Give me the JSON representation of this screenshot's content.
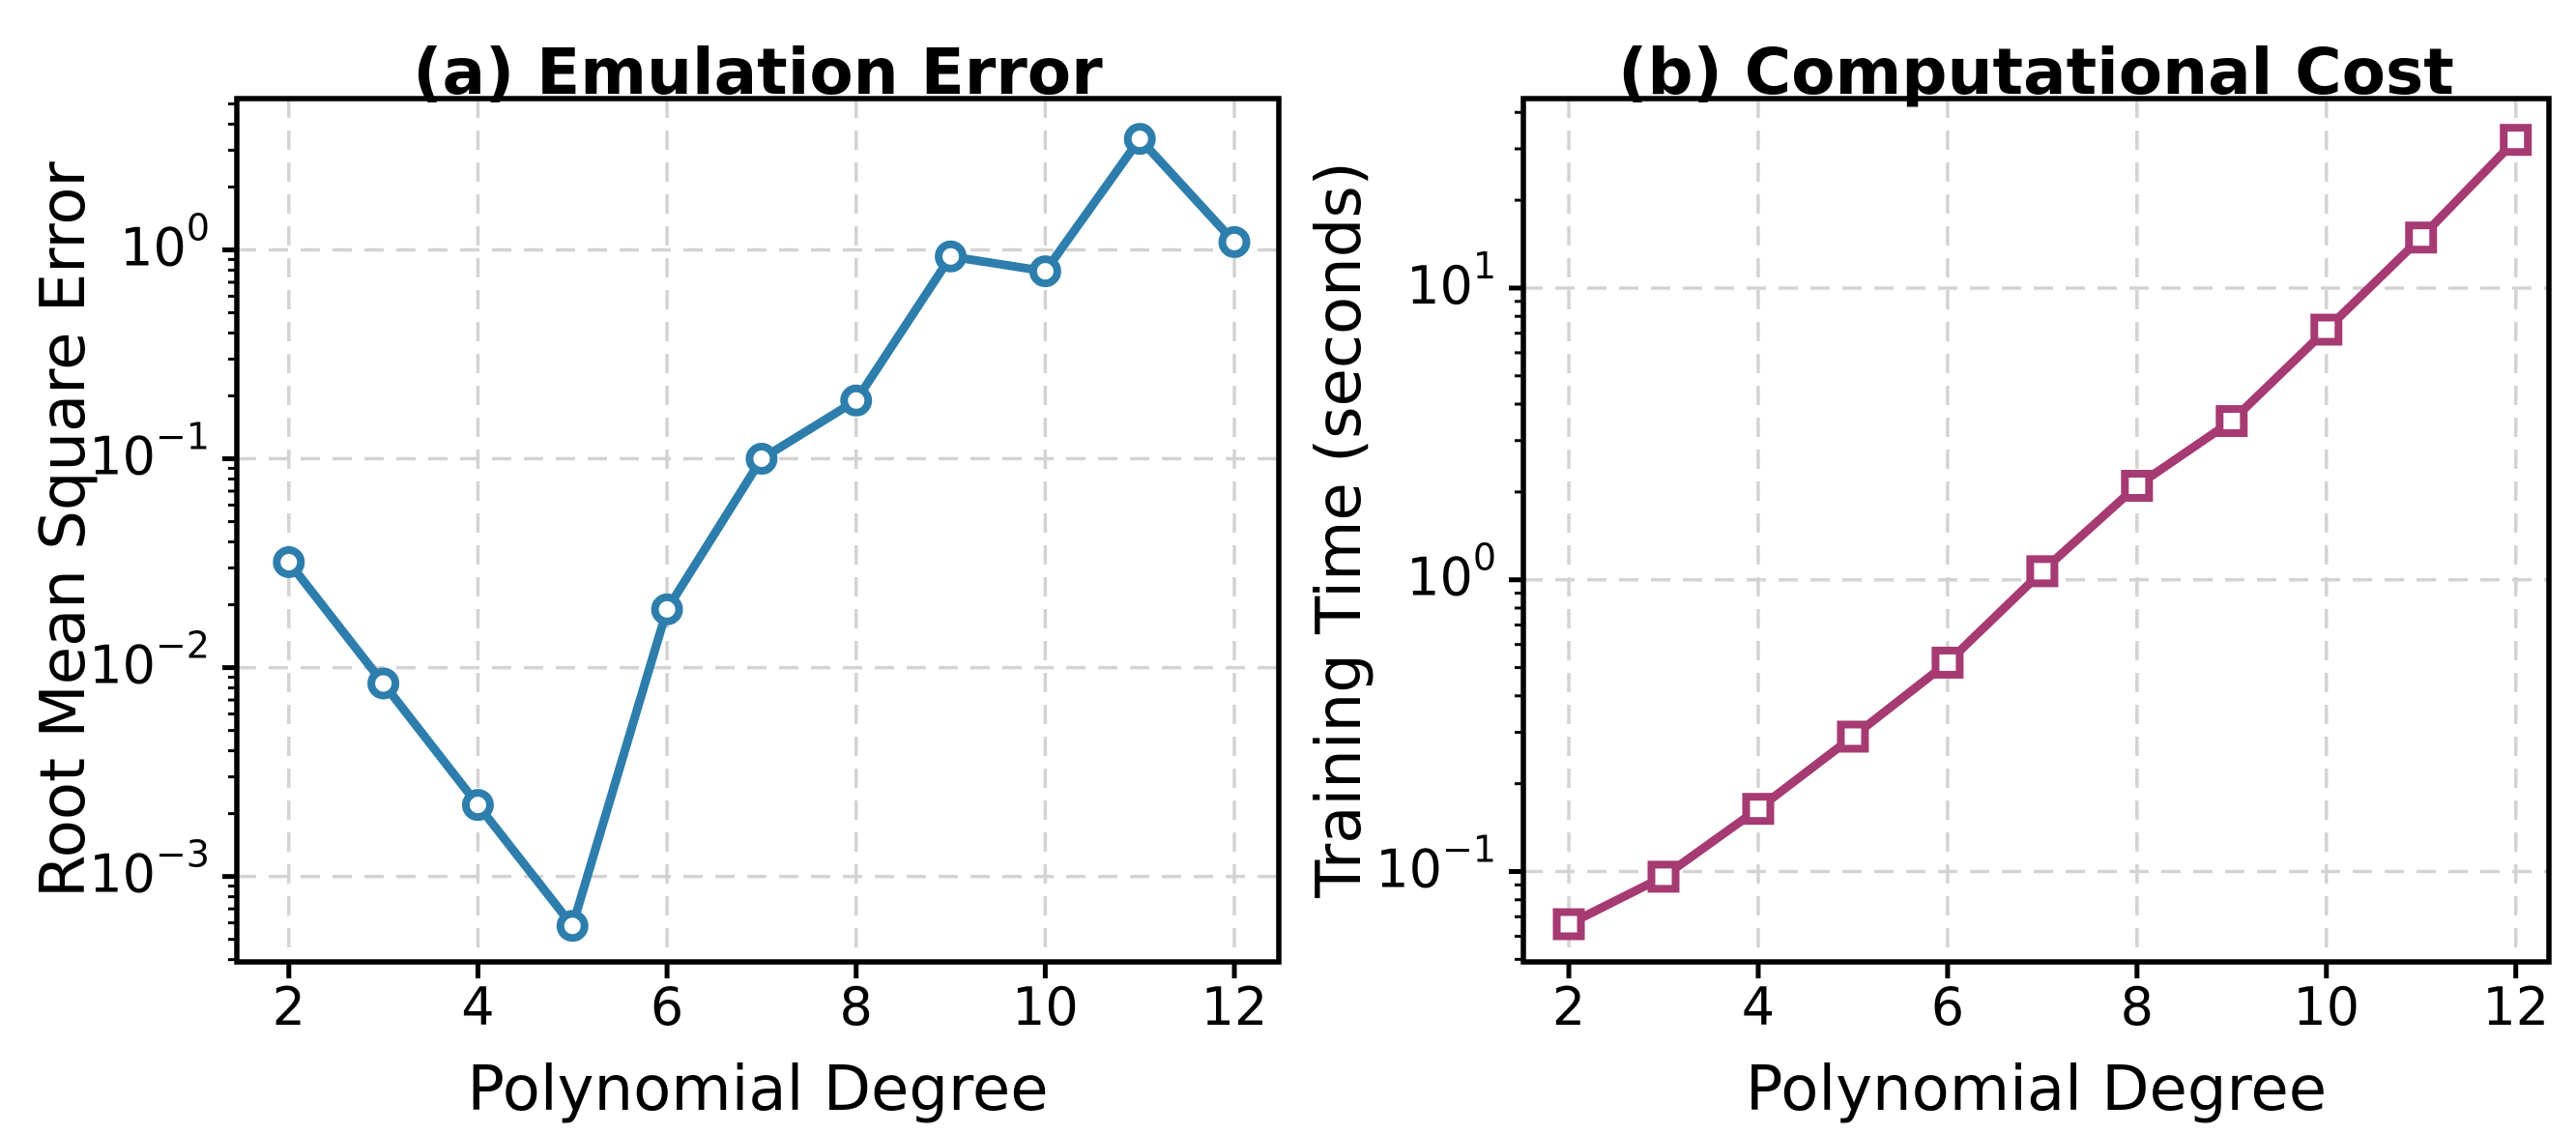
{
  "figure": {
    "background": "#ffffff",
    "text_color": "#000000",
    "grid_color": "#d3d3d3",
    "spine_color": "#000000"
  },
  "chart_data": [
    {
      "type": "line",
      "panel": "a",
      "title": "(a) Emulation Error",
      "xlabel": "Polynomial Degree",
      "ylabel": "Root Mean Square Error",
      "xscale": "linear",
      "yscale": "log",
      "grid": true,
      "legend_position": "none",
      "line_color": "#2D7EAC",
      "marker": "circle",
      "marker_fill": "#ffffff",
      "x": [
        2,
        3,
        4,
        5,
        6,
        7,
        8,
        9,
        10,
        11,
        12
      ],
      "y": [
        0.032,
        0.0084,
        0.0022,
        0.00058,
        0.019,
        0.1,
        0.19,
        0.93,
        0.79,
        3.4,
        1.09
      ],
      "xticks": [
        2,
        4,
        6,
        8,
        10,
        12
      ],
      "ytick_exponents": [
        0,
        -1,
        -2,
        -3
      ],
      "xlim": [
        1.45,
        12.47
      ],
      "ylim": [
        0.00039,
        5.3
      ]
    },
    {
      "type": "line",
      "panel": "b",
      "title": "(b) Computational Cost",
      "xlabel": "Polynomial Degree",
      "ylabel": "Training Time (seconds)",
      "xscale": "linear",
      "yscale": "log",
      "grid": true,
      "legend_position": "none",
      "line_color": "#A63A72",
      "marker": "square",
      "marker_fill": "#ffffff",
      "x": [
        2,
        3,
        4,
        5,
        6,
        7,
        8,
        9,
        10,
        11,
        12
      ],
      "y": [
        0.066,
        0.096,
        0.164,
        0.29,
        0.52,
        1.07,
        2.1,
        3.5,
        7.2,
        14.9,
        32.2
      ],
      "xticks": [
        2,
        4,
        6,
        8,
        10,
        12
      ],
      "ytick_exponents": [
        1,
        0,
        -1
      ],
      "xlim": [
        1.52,
        12.35
      ],
      "ylim": [
        0.049,
        44.6
      ]
    }
  ]
}
